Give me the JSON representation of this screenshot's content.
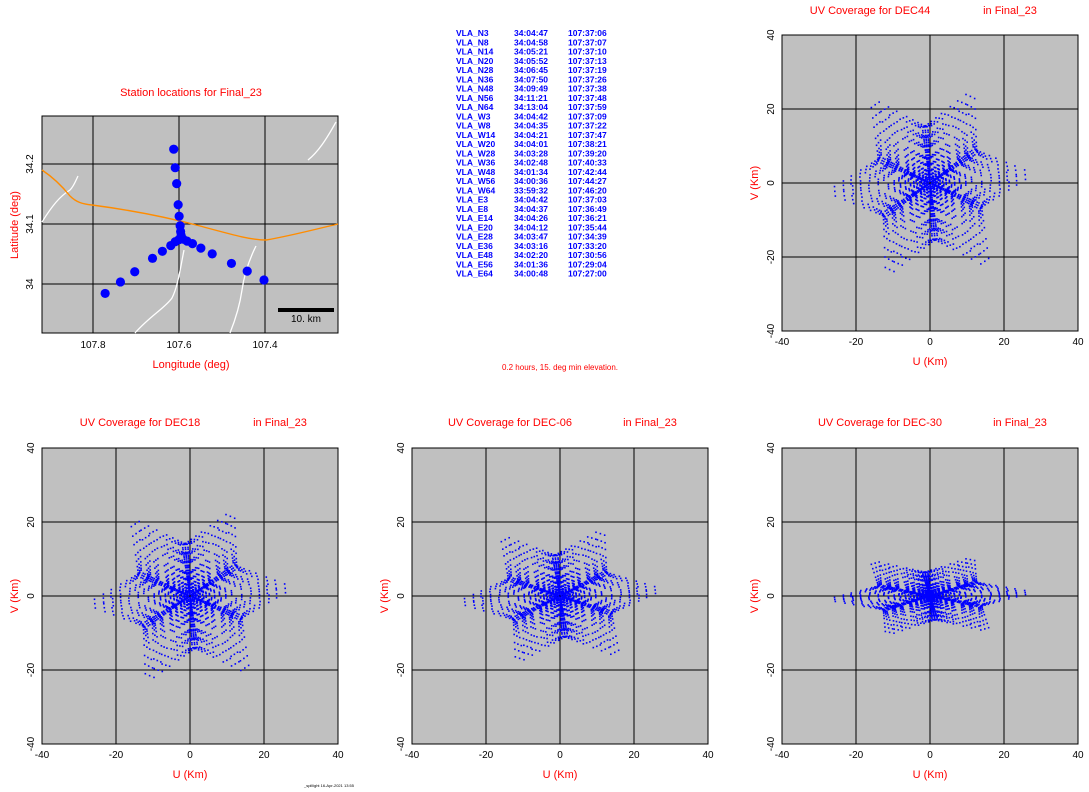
{
  "station_plot": {
    "title": "Station locations for Final_23",
    "xlabel": "Longitude (deg)",
    "ylabel": "Latitude (deg)",
    "xticks": [
      "107.8",
      "107.6",
      "107.4"
    ],
    "yticks": [
      "34",
      "34.1",
      "34.2"
    ],
    "scalebar_label": "10. km"
  },
  "station_list": [
    {
      "name": "VLA_N3",
      "lat": "34:04:47",
      "lon": "107:37:06"
    },
    {
      "name": "VLA_N8",
      "lat": "34:04:58",
      "lon": "107:37:07"
    },
    {
      "name": "VLA_N14",
      "lat": "34:05:21",
      "lon": "107:37:10"
    },
    {
      "name": "VLA_N20",
      "lat": "34:05:52",
      "lon": "107:37:13"
    },
    {
      "name": "VLA_N28",
      "lat": "34:06:45",
      "lon": "107:37:19"
    },
    {
      "name": "VLA_N36",
      "lat": "34:07:50",
      "lon": "107:37:26"
    },
    {
      "name": "VLA_N48",
      "lat": "34:09:49",
      "lon": "107:37:38"
    },
    {
      "name": "VLA_N56",
      "lat": "34:11:21",
      "lon": "107:37:48"
    },
    {
      "name": "VLA_N64",
      "lat": "34:13:04",
      "lon": "107:37:59"
    },
    {
      "name": "VLA_W3",
      "lat": "34:04:42",
      "lon": "107:37:09"
    },
    {
      "name": "VLA_W8",
      "lat": "34:04:35",
      "lon": "107:37:22"
    },
    {
      "name": "VLA_W14",
      "lat": "34:04:21",
      "lon": "107:37:47"
    },
    {
      "name": "VLA_W20",
      "lat": "34:04:01",
      "lon": "107:38:21"
    },
    {
      "name": "VLA_W28",
      "lat": "34:03:28",
      "lon": "107:39:20"
    },
    {
      "name": "VLA_W36",
      "lat": "34:02:48",
      "lon": "107:40:33"
    },
    {
      "name": "VLA_W48",
      "lat": "34:01:34",
      "lon": "107:42:44"
    },
    {
      "name": "VLA_W56",
      "lat": "34:00:36",
      "lon": "107:44:27"
    },
    {
      "name": "VLA_W64",
      "lat": "33:59:32",
      "lon": "107:46:20"
    },
    {
      "name": "VLA_E3",
      "lat": "34:04:42",
      "lon": "107:37:03"
    },
    {
      "name": "VLA_E8",
      "lat": "34:04:37",
      "lon": "107:36:49"
    },
    {
      "name": "VLA_E14",
      "lat": "34:04:26",
      "lon": "107:36:21"
    },
    {
      "name": "VLA_E20",
      "lat": "34:04:12",
      "lon": "107:35:44"
    },
    {
      "name": "VLA_E28",
      "lat": "34:03:47",
      "lon": "107:34:39"
    },
    {
      "name": "VLA_E36",
      "lat": "34:03:16",
      "lon": "107:33:20"
    },
    {
      "name": "VLA_E48",
      "lat": "34:02:20",
      "lon": "107:30:56"
    },
    {
      "name": "VLA_E56",
      "lat": "34:01:36",
      "lon": "107:29:04"
    },
    {
      "name": "VLA_E64",
      "lat": "34:00:48",
      "lon": "107:27:00"
    }
  ],
  "observation_note": "0.2 hours, 15. deg min elevation.",
  "footer": "_spillight 16-Apr-2021 13:55",
  "uv_common": {
    "title_suffix": "in Final_23",
    "xlabel": "U (Km)",
    "ylabel": "V (Km)",
    "xticks": [
      "-40",
      "-20",
      "0",
      "20",
      "40"
    ],
    "yticks": [
      "-40",
      "-20",
      "0",
      "20",
      "40"
    ]
  },
  "uv_plots": [
    {
      "title": "UV Coverage for DEC44"
    },
    {
      "title": "UV Coverage for DEC18"
    },
    {
      "title": "UV Coverage for DEC-06"
    },
    {
      "title": "UV Coverage for DEC-30"
    }
  ],
  "colors": {
    "panel_bg": "#c0c0c0",
    "points": "#0000ff",
    "labels": "#ff0000",
    "road": "#ff8c00",
    "terrain": "#ffffff"
  },
  "chart_data": [
    {
      "type": "scatter",
      "title": "Station locations for Final_23",
      "xlabel": "Longitude (deg)",
      "ylabel": "Latitude (deg)",
      "xlim": [
        107.9,
        107.3
      ],
      "ylim": [
        33.93,
        34.27
      ],
      "grid": true,
      "series": [
        {
          "x": [
            107.618,
            107.618,
            107.619,
            107.62,
            107.622,
            107.624,
            107.627,
            107.63,
            107.633,
            107.619,
            107.623,
            107.63,
            107.639,
            107.656,
            107.676,
            107.712,
            107.741,
            107.772,
            107.618,
            107.614,
            107.606,
            107.595,
            107.578,
            107.555,
            107.516,
            107.484,
            107.45
          ],
          "y": [
            34.08,
            34.083,
            34.089,
            34.098,
            34.113,
            34.131,
            34.164,
            34.189,
            34.218,
            34.078,
            34.076,
            34.073,
            34.067,
            34.058,
            34.047,
            34.026,
            34.01,
            33.992,
            34.078,
            34.077,
            34.074,
            34.07,
            34.063,
            34.054,
            34.039,
            34.027,
            34.013
          ]
        }
      ]
    },
    {
      "type": "scatter",
      "title": "UV Coverage for DEC44",
      "xlabel": "U (Km)",
      "ylabel": "V (Km)",
      "xlim": [
        -40,
        40
      ],
      "ylim": [
        -40,
        40
      ],
      "grid": true,
      "coverage": {
        "u_extent": [
          -30,
          30
        ],
        "v_extent": [
          -26,
          26
        ],
        "shape": "six-armed star"
      }
    },
    {
      "type": "scatter",
      "title": "UV Coverage for DEC18",
      "xlabel": "U (Km)",
      "ylabel": "V (Km)",
      "xlim": [
        -40,
        40
      ],
      "ylim": [
        -40,
        40
      ],
      "grid": true,
      "coverage": {
        "u_extent": [
          -30,
          30
        ],
        "v_extent": [
          -24,
          24
        ],
        "shape": "six-armed star"
      }
    },
    {
      "type": "scatter",
      "title": "UV Coverage for DEC-06",
      "xlabel": "U (Km)",
      "ylabel": "V (Km)",
      "xlim": [
        -40,
        40
      ],
      "ylim": [
        -40,
        40
      ],
      "grid": true,
      "coverage": {
        "u_extent": [
          -30,
          30
        ],
        "v_extent": [
          -19,
          19
        ],
        "shape": "six-armed star"
      }
    },
    {
      "type": "scatter",
      "title": "UV Coverage for DEC-30",
      "xlabel": "U (Km)",
      "ylabel": "V (Km)",
      "xlim": [
        -40,
        40
      ],
      "ylim": [
        -40,
        40
      ],
      "grid": true,
      "coverage": {
        "u_extent": [
          -30,
          30
        ],
        "v_extent": [
          -11,
          11
        ],
        "shape": "six-armed star"
      }
    }
  ]
}
